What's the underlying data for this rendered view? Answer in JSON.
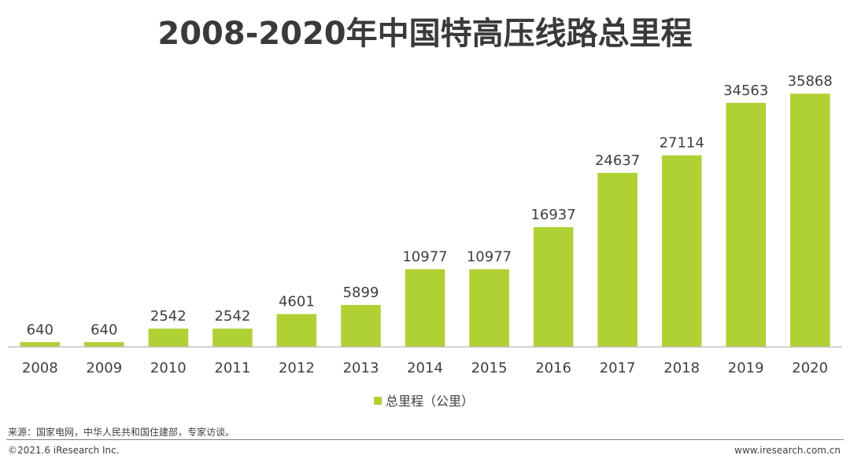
{
  "chart_data": {
    "type": "bar",
    "title": "2008-2020年中国特高压线路总里程",
    "categories": [
      "2008",
      "2009",
      "2010",
      "2011",
      "2012",
      "2013",
      "2014",
      "2015",
      "2016",
      "2017",
      "2018",
      "2019",
      "2020"
    ],
    "series": [
      {
        "name": "总里程（公里）",
        "values": [
          640,
          640,
          2542,
          2542,
          4601,
          5899,
          10977,
          10977,
          16937,
          24637,
          27114,
          34563,
          35868
        ],
        "color": "#b0d134"
      }
    ],
    "xlabel": "",
    "ylabel": "",
    "ylim": [
      0,
      36000
    ],
    "grid": false,
    "legend_position": "bottom-center",
    "data_labels": true,
    "axis_color": "#bfbfbf"
  },
  "source": "来源：国家电网，中华人民共和国住建部，专家访谈。",
  "footer": {
    "copyright": "©2021.6 iResearch Inc.",
    "website": "www.iresearch.com.cn"
  }
}
